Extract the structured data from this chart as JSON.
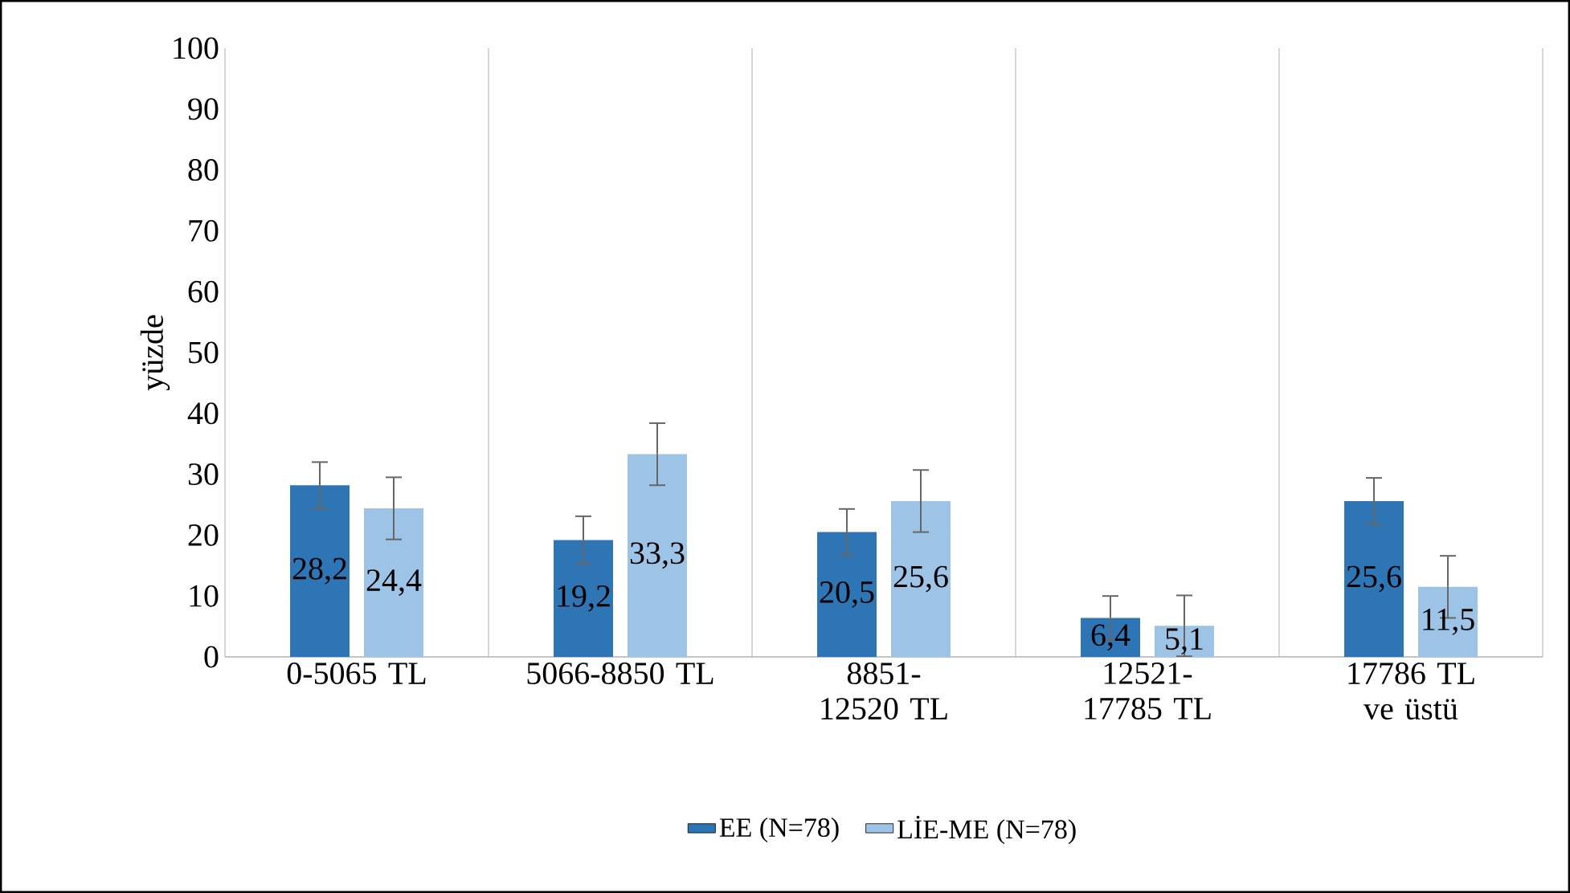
{
  "chart_data": {
    "type": "bar",
    "ylabel": "yüzde",
    "categories": [
      "0-5065 TL",
      "5066-8850 TL",
      "8851-12520 TL",
      "12521-17785 TL",
      "17786 TL ve üstü"
    ],
    "series": [
      {
        "name": "EE (N=78)",
        "color": "#2e75b6",
        "values": [
          28.2,
          19.2,
          20.5,
          6.4,
          25.6
        ],
        "errors": [
          3.8,
          3.9,
          3.8,
          3.6,
          3.8
        ],
        "value_labels": [
          "28,2",
          "19,2",
          "20,5",
          "6,4",
          "25,6"
        ]
      },
      {
        "name": "LİE-ME (N=78)",
        "color": "#9dc3e6",
        "values": [
          24.4,
          33.3,
          25.6,
          5.1,
          11.5
        ],
        "errors": [
          5.1,
          5.1,
          5.1,
          5.0,
          5.1
        ],
        "value_labels": [
          "24,4",
          "33,3",
          "25,6",
          "5,1",
          "11,5"
        ]
      }
    ],
    "ylim": [
      0,
      100
    ],
    "yticks": [
      0,
      10,
      20,
      30,
      40,
      50,
      60,
      70,
      80,
      90,
      100
    ],
    "grid": "x",
    "legend": "bottom"
  }
}
